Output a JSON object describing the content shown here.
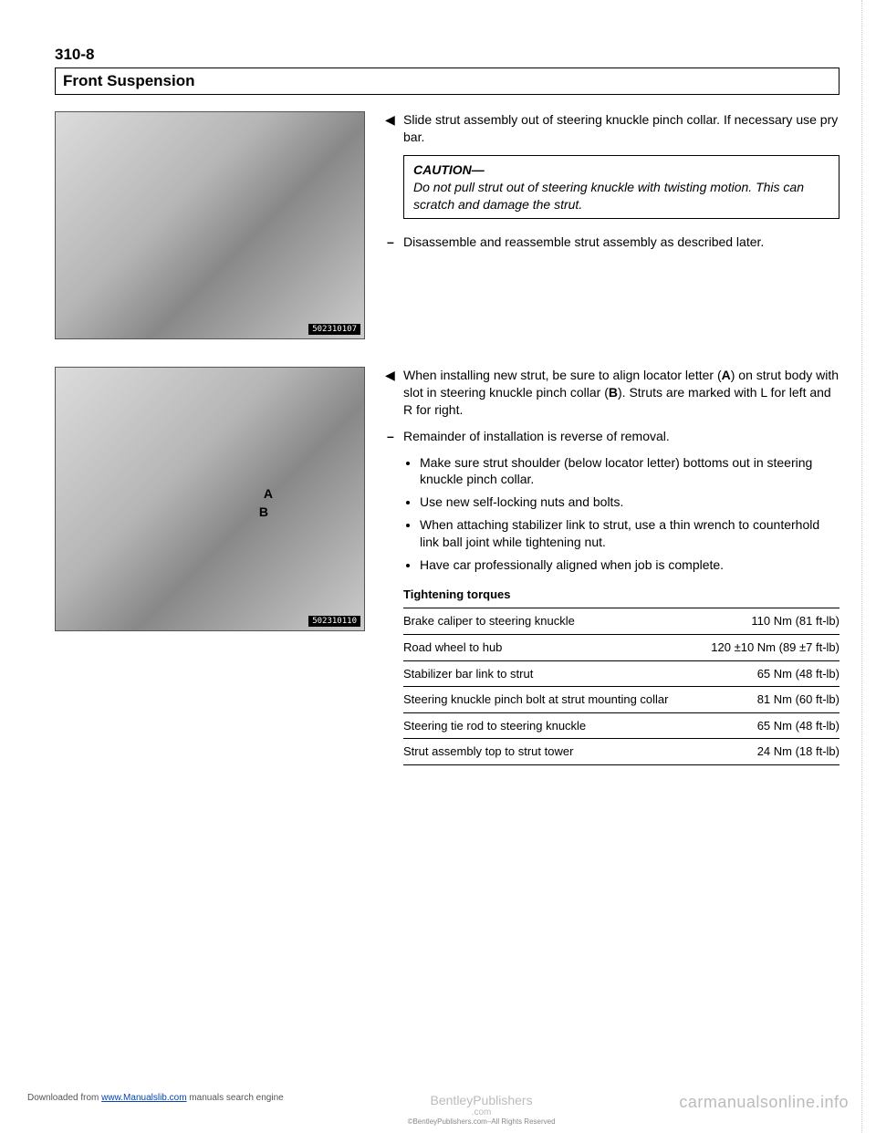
{
  "page_number": "310-8",
  "section_title": "Front Suspension",
  "block1": {
    "fig_tag": "502310107",
    "step_text": "Slide strut assembly out of steering knuckle pinch collar. If necessary use pry bar.",
    "caution_title": "CAUTION—",
    "caution_body": "Do not pull strut out of steering knuckle with twisting motion. This can scratch and damage the strut.",
    "step2_text": "Disassemble and reassemble strut assembly as described later."
  },
  "block2": {
    "fig_tag": "502310110",
    "label_a": "A",
    "label_b": "B",
    "step_text": "When installing new strut, be sure to align locator letter (A) on strut body with slot in steering knuckle pinch collar (B). Struts are marked with L for left and R for right.",
    "step2_text": "Remainder of installation is reverse of removal.",
    "bullets": [
      "Make sure strut shoulder (below locator letter) bottoms out in steering knuckle pinch collar.",
      "Use new self-locking nuts and bolts.",
      "When attaching stabilizer link to strut, use a thin wrench to counterhold link ball joint while tightening nut.",
      "Have car professionally aligned when job is complete."
    ],
    "torque_title": "Tightening torques",
    "torques": [
      {
        "label": "Brake caliper to steering knuckle",
        "value": "110 Nm (81 ft-lb)"
      },
      {
        "label": "Road wheel to hub",
        "value": "120 ±10 Nm (89 ±7 ft-lb)"
      },
      {
        "label": "Stabilizer bar link to strut",
        "value": "65 Nm (48 ft-lb)"
      },
      {
        "label": "Steering knuckle pinch bolt at strut mounting collar",
        "value": "81 Nm (60 ft-lb)"
      },
      {
        "label": "Steering tie rod to steering knuckle",
        "value": "65 Nm (48 ft-lb)"
      },
      {
        "label": "Strut assembly top to strut tower",
        "value": "24 Nm (18 ft-lb)"
      }
    ]
  },
  "footer": {
    "left_pre": "Downloaded from ",
    "left_link": "www.Manualslib.com",
    "left_post": " manuals search engine",
    "center_line1": "BentleyPublishers",
    "center_line2": ".com",
    "center_line3": "©BentleyPublishers.com–All Rights Reserved",
    "right": "carmanualsonline.info"
  }
}
